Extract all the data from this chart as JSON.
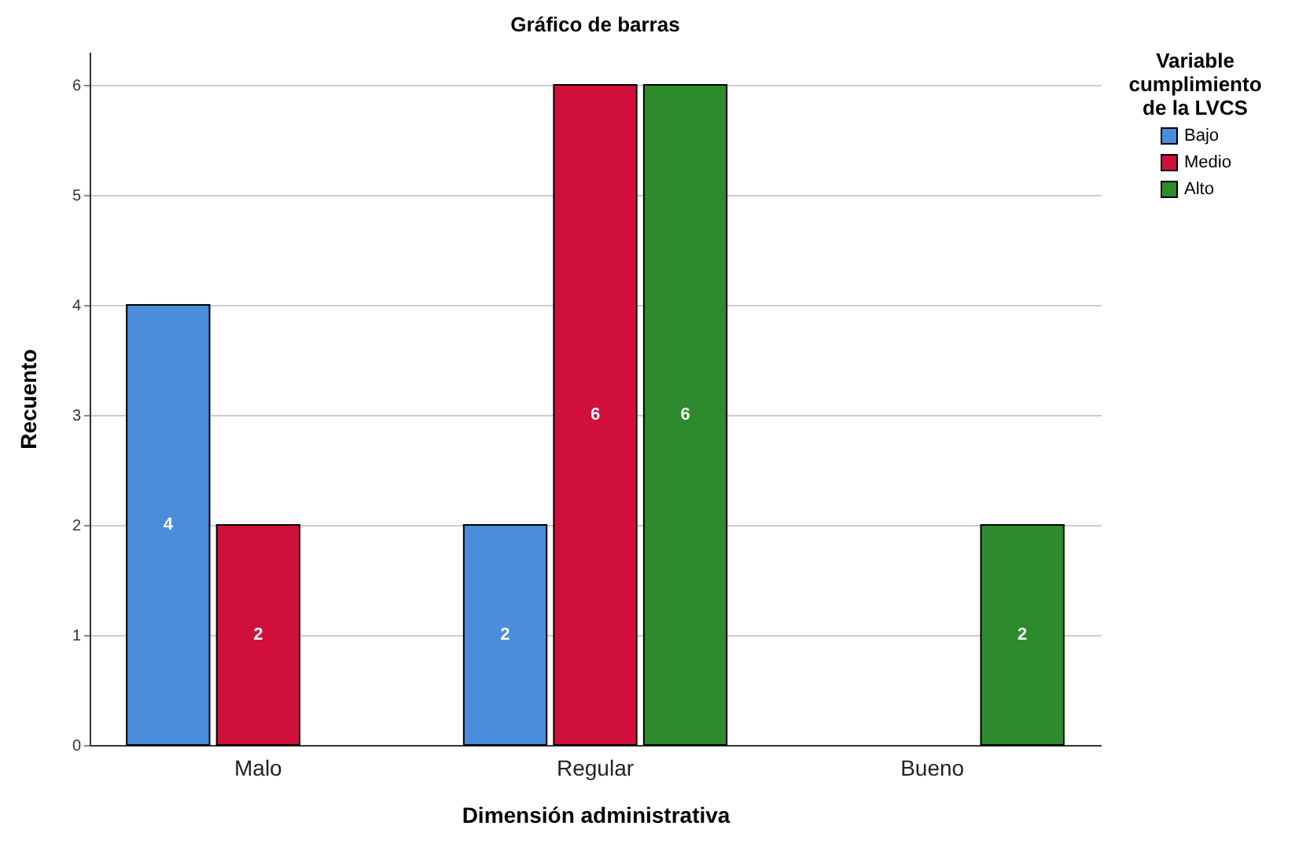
{
  "chart_data": {
    "type": "bar",
    "title": "Gráfico de barras",
    "xlabel": "Dimensión administrativa",
    "ylabel": "Recuento",
    "legend_title": "Variable cumplimiento de la LVCS",
    "categories": [
      "Malo",
      "Regular",
      "Bueno"
    ],
    "series": [
      {
        "name": "Bajo",
        "color": "#4a8ddc",
        "values": [
          4,
          2,
          null
        ]
      },
      {
        "name": "Medio",
        "color": "#d0103a",
        "values": [
          2,
          6,
          null
        ]
      },
      {
        "name": "Alto",
        "color": "#2d8a2d",
        "values": [
          null,
          6,
          2
        ]
      }
    ],
    "ylim": [
      0,
      6.3
    ],
    "yticks": [
      0,
      1,
      2,
      3,
      4,
      5,
      6
    ],
    "grid": "y",
    "legend": "top right",
    "data_labels": true
  }
}
